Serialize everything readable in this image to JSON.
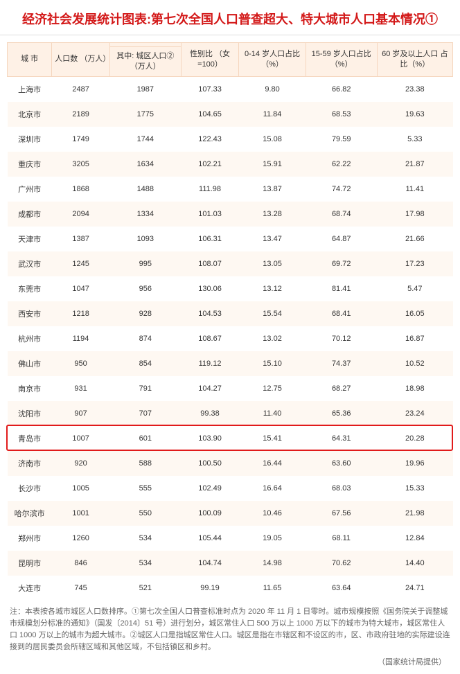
{
  "title": "经济社会发展统计图表:第七次全国人口普查超大、特大城市人口基本情况①",
  "headers": {
    "city": "城 市",
    "population": "人口数\n（万人）",
    "urban_pop": "其中: 城区人口②\n（万人）",
    "sex_ratio": "性别比\n（女 =100）",
    "age_0_14": "0-14 岁人口占比\n（%）",
    "age_15_59": "15-59 岁人口占比\n（%）",
    "age_60_plus": "60 岁及以上人口\n占比（%）"
  },
  "rows": [
    {
      "city": "上海市",
      "pop": "2487",
      "urban": "1987",
      "sex": "107.33",
      "a014": "9.80",
      "a1559": "66.82",
      "a60": "23.38"
    },
    {
      "city": "北京市",
      "pop": "2189",
      "urban": "1775",
      "sex": "104.65",
      "a014": "11.84",
      "a1559": "68.53",
      "a60": "19.63"
    },
    {
      "city": "深圳市",
      "pop": "1749",
      "urban": "1744",
      "sex": "122.43",
      "a014": "15.08",
      "a1559": "79.59",
      "a60": "5.33"
    },
    {
      "city": "重庆市",
      "pop": "3205",
      "urban": "1634",
      "sex": "102.21",
      "a014": "15.91",
      "a1559": "62.22",
      "a60": "21.87"
    },
    {
      "city": "广州市",
      "pop": "1868",
      "urban": "1488",
      "sex": "111.98",
      "a014": "13.87",
      "a1559": "74.72",
      "a60": "11.41"
    },
    {
      "city": "成都市",
      "pop": "2094",
      "urban": "1334",
      "sex": "101.03",
      "a014": "13.28",
      "a1559": "68.74",
      "a60": "17.98"
    },
    {
      "city": "天津市",
      "pop": "1387",
      "urban": "1093",
      "sex": "106.31",
      "a014": "13.47",
      "a1559": "64.87",
      "a60": "21.66"
    },
    {
      "city": "武汉市",
      "pop": "1245",
      "urban": "995",
      "sex": "108.07",
      "a014": "13.05",
      "a1559": "69.72",
      "a60": "17.23"
    },
    {
      "city": "东莞市",
      "pop": "1047",
      "urban": "956",
      "sex": "130.06",
      "a014": "13.12",
      "a1559": "81.41",
      "a60": "5.47"
    },
    {
      "city": "西安市",
      "pop": "1218",
      "urban": "928",
      "sex": "104.53",
      "a014": "15.54",
      "a1559": "68.41",
      "a60": "16.05"
    },
    {
      "city": "杭州市",
      "pop": "1194",
      "urban": "874",
      "sex": "108.67",
      "a014": "13.02",
      "a1559": "70.12",
      "a60": "16.87"
    },
    {
      "city": "佛山市",
      "pop": "950",
      "urban": "854",
      "sex": "119.12",
      "a014": "15.10",
      "a1559": "74.37",
      "a60": "10.52"
    },
    {
      "city": "南京市",
      "pop": "931",
      "urban": "791",
      "sex": "104.27",
      "a014": "12.75",
      "a1559": "68.27",
      "a60": "18.98"
    },
    {
      "city": "沈阳市",
      "pop": "907",
      "urban": "707",
      "sex": "99.38",
      "a014": "11.40",
      "a1559": "65.36",
      "a60": "23.24"
    },
    {
      "city": "青岛市",
      "pop": "1007",
      "urban": "601",
      "sex": "103.90",
      "a014": "15.41",
      "a1559": "64.31",
      "a60": "20.28",
      "highlight": true
    },
    {
      "city": "济南市",
      "pop": "920",
      "urban": "588",
      "sex": "100.50",
      "a014": "16.44",
      "a1559": "63.60",
      "a60": "19.96"
    },
    {
      "city": "长沙市",
      "pop": "1005",
      "urban": "555",
      "sex": "102.49",
      "a014": "16.64",
      "a1559": "68.03",
      "a60": "15.33"
    },
    {
      "city": "哈尔滨市",
      "pop": "1001",
      "urban": "550",
      "sex": "100.09",
      "a014": "10.46",
      "a1559": "67.56",
      "a60": "21.98"
    },
    {
      "city": "郑州市",
      "pop": "1260",
      "urban": "534",
      "sex": "105.44",
      "a014": "19.05",
      "a1559": "68.11",
      "a60": "12.84"
    },
    {
      "city": "昆明市",
      "pop": "846",
      "urban": "534",
      "sex": "104.74",
      "a014": "14.98",
      "a1559": "70.62",
      "a60": "14.40"
    },
    {
      "city": "大连市",
      "pop": "745",
      "urban": "521",
      "sex": "99.19",
      "a014": "11.65",
      "a1559": "63.64",
      "a60": "24.71"
    }
  ],
  "footnote": "注：本表按各城市城区人口数排序。①第七次全国人口普查标准时点为 2020 年 11 月 1 日零时。城市规模按照《国务院关于调整城市规模划分标准的通知》（国发〔2014〕51 号）进行划分，城区常住人口 500 万以上 1000 万以下的城市为特大城市，城区常住人口 1000 万以上的城市为超大城市。②城区人口是指城区常住人口。城区是指在市辖区和不设区的市，区、市政府驻地的实际建设连接到的居民委员会所辖区域和其他区域，不包括镇区和乡村。",
  "source": "（国家统计局提供）",
  "highlight_color": "#e11b1b"
}
